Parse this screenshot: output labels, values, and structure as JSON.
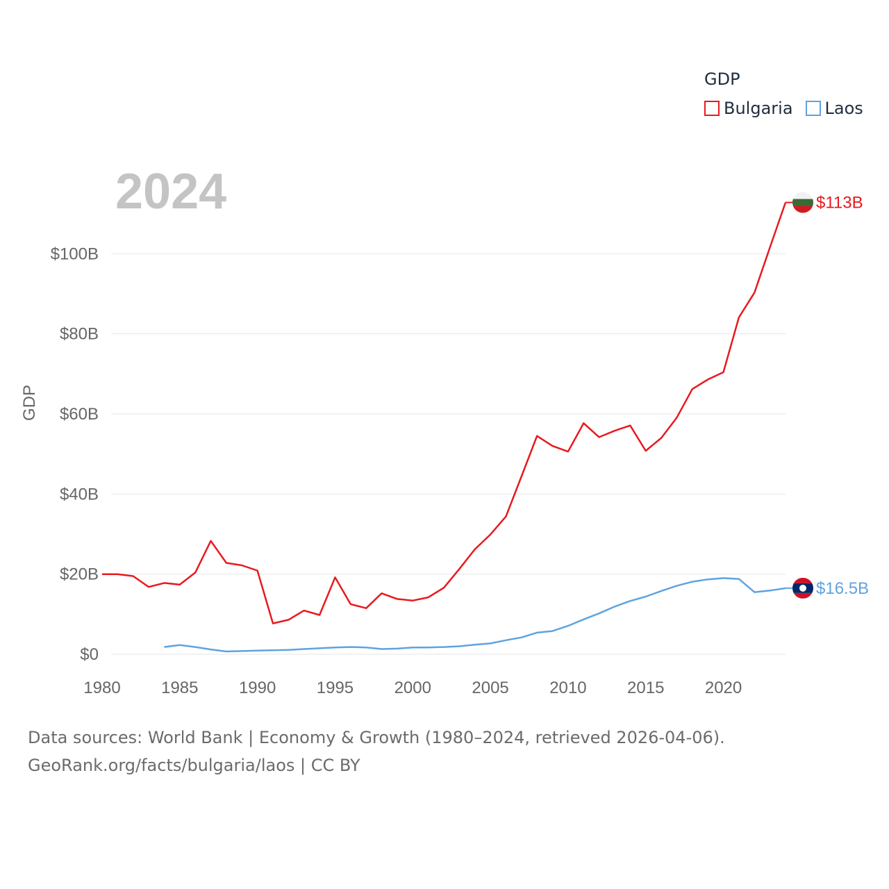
{
  "legend": {
    "title": "GDP",
    "items": [
      {
        "label": "Bulgaria",
        "color": "#e8191f"
      },
      {
        "label": "Laos",
        "color": "#5ea3e0"
      }
    ]
  },
  "footer": {
    "line1": "Data sources: World Bank | Economy & Growth (1980–2024, retrieved 2026-04-06).",
    "line2": "GeoRank.org/facts/bulgaria/laos | CC BY"
  },
  "chart_data": {
    "type": "line",
    "year_label": "2024",
    "ylabel": "GDP",
    "xlim": [
      1980,
      2024
    ],
    "ylim": [
      0,
      120
    ],
    "y_unit": "billion USD",
    "x_ticks": [
      1980,
      1985,
      1990,
      1995,
      2000,
      2005,
      2010,
      2015,
      2020
    ],
    "x_tick_labels": [
      "1980",
      "1985",
      "1990",
      "1995",
      "2000",
      "2005",
      "2010",
      "2015",
      "2020"
    ],
    "y_ticks": [
      0,
      20,
      40,
      60,
      80,
      100
    ],
    "y_tick_labels": [
      "$0",
      "$20B",
      "$40B",
      "$60B",
      "$80B",
      "$100B"
    ],
    "grid": true,
    "series": [
      {
        "name": "Bulgaria",
        "color": "#e8191f",
        "end_label": "$113B",
        "x": [
          1980,
          1981,
          1982,
          1983,
          1984,
          1985,
          1986,
          1987,
          1988,
          1989,
          1990,
          1991,
          1992,
          1993,
          1994,
          1995,
          1996,
          1997,
          1998,
          1999,
          2000,
          2001,
          2002,
          2003,
          2004,
          2005,
          2006,
          2007,
          2008,
          2009,
          2010,
          2011,
          2012,
          2013,
          2014,
          2015,
          2016,
          2017,
          2018,
          2019,
          2020,
          2021,
          2022,
          2023,
          2024
        ],
        "values": [
          20.0,
          20.0,
          19.5,
          16.8,
          17.8,
          17.4,
          20.4,
          28.3,
          22.8,
          22.2,
          20.9,
          7.7,
          8.6,
          10.9,
          9.8,
          19.2,
          12.5,
          11.5,
          15.2,
          13.8,
          13.4,
          14.2,
          16.6,
          21.3,
          26.2,
          29.9,
          34.4,
          44.4,
          54.5,
          52.0,
          50.6,
          57.7,
          54.2,
          55.8,
          57.1,
          50.8,
          54.0,
          59.1,
          66.2,
          68.6,
          70.4,
          84.1,
          90.3,
          101.6,
          112.8
        ]
      },
      {
        "name": "Laos",
        "color": "#5ea3e0",
        "end_label": "$16.5B",
        "x": [
          1984,
          1985,
          1986,
          1987,
          1988,
          1989,
          1990,
          1991,
          1992,
          1993,
          1994,
          1995,
          1996,
          1997,
          1998,
          1999,
          2000,
          2001,
          2002,
          2003,
          2004,
          2005,
          2006,
          2007,
          2008,
          2009,
          2010,
          2011,
          2012,
          2013,
          2014,
          2015,
          2016,
          2017,
          2018,
          2019,
          2020,
          2021,
          2022,
          2023,
          2024
        ],
        "values": [
          1.8,
          2.3,
          1.8,
          1.2,
          0.7,
          0.8,
          0.9,
          1.0,
          1.1,
          1.3,
          1.5,
          1.7,
          1.8,
          1.7,
          1.3,
          1.4,
          1.7,
          1.7,
          1.8,
          2.0,
          2.4,
          2.7,
          3.5,
          4.2,
          5.4,
          5.8,
          7.1,
          8.7,
          10.2,
          11.9,
          13.3,
          14.4,
          15.8,
          17.1,
          18.1,
          18.7,
          19.0,
          18.8,
          15.5,
          15.9,
          16.5
        ]
      }
    ]
  }
}
